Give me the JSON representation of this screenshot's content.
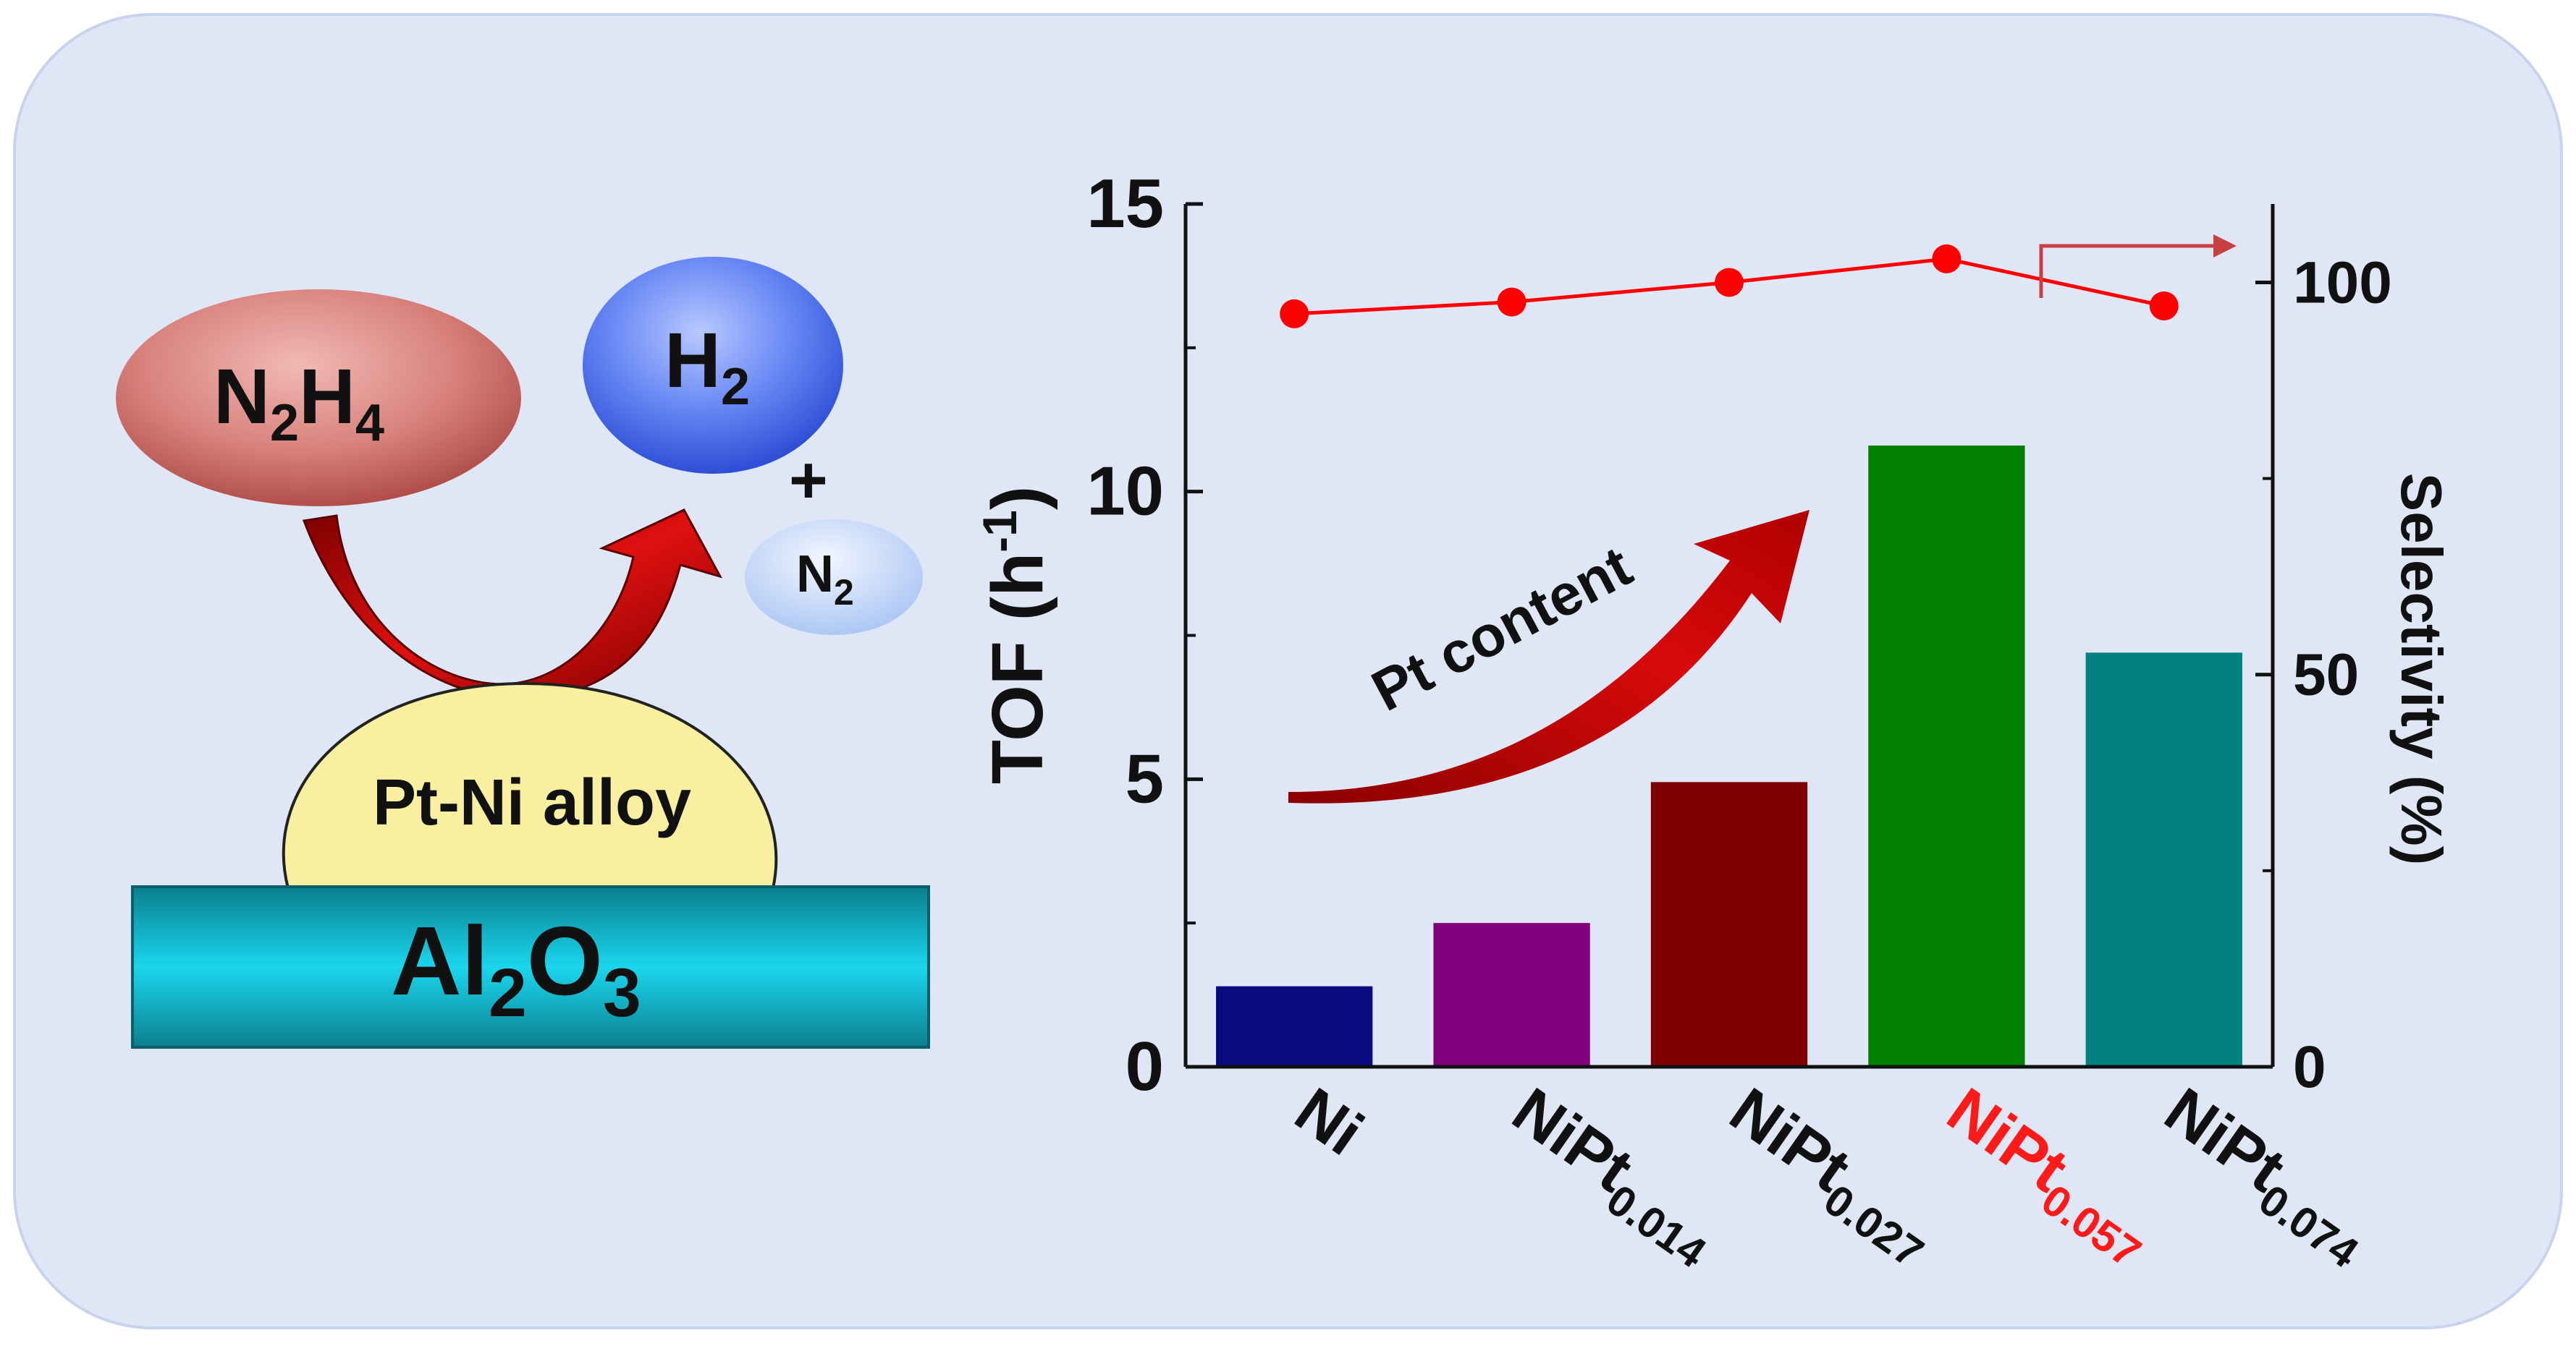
{
  "colors": {
    "panel_bg": "#dfe6f6",
    "selectivity_line": "#ff0000",
    "highlight_label": "#ff1a1a",
    "axis": "#111111",
    "arrow": "#c80000",
    "substrate": "#19c8e0",
    "alloy": "#f8f0a0"
  },
  "scheme": {
    "reactant": {
      "main": "N",
      "sub1": "2",
      "mid": "H",
      "sub2": "4"
    },
    "product_h2": {
      "main": "H",
      "sub": "2"
    },
    "plus": "+",
    "product_n2": {
      "main": "N",
      "sub": "2"
    },
    "alloy_label": "Pt-Ni alloy",
    "support": {
      "a": "Al",
      "sub1": "2",
      "b": "O",
      "sub2": "3"
    },
    "icons": [
      "curved-arrow-icon"
    ]
  },
  "chart_data": {
    "type": "bar",
    "categories": [
      {
        "main": "Ni",
        "sub": ""
      },
      {
        "main": "NiPt",
        "sub": "0.014"
      },
      {
        "main": "NiPt",
        "sub": "0.027"
      },
      {
        "main": "NiPt",
        "sub": "0.057"
      },
      {
        "main": "NiPt",
        "sub": "0.074"
      }
    ],
    "highlight_category_index": 3,
    "series": [
      {
        "values": [
          1.4,
          2.5,
          4.95,
          10.8,
          7.2
        ],
        "colors": [
          "#0a0a80",
          "#800080",
          "#7f0000",
          "#007f00",
          "#008080"
        ],
        "axis": "left"
      },
      {
        "type": "line",
        "values": [
          96,
          97.5,
          100,
          103,
          97
        ],
        "color": "#ff0000",
        "marker": "circle",
        "axis": "right"
      }
    ],
    "ylabel": {
      "main": "TOF (h",
      "sup": "-1",
      "end": ")"
    },
    "y2label": "Selectivity (%)",
    "ylim": [
      0,
      15
    ],
    "y2lim": [
      0,
      110
    ],
    "yticks": [
      "0",
      "5",
      "10",
      "15"
    ],
    "y2ticks": [
      "0",
      "50",
      "100"
    ],
    "y2tick_values": [
      0,
      50,
      100
    ],
    "annotation": "Pt content",
    "grid": false,
    "legend": "none"
  }
}
